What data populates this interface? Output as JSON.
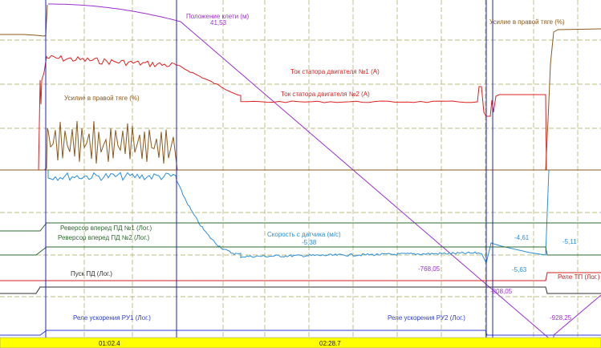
{
  "chart_data": {
    "type": "line",
    "labels": {
      "position": "Положение клети (м)",
      "position_value": "41,53",
      "force_right_top": "Усилие в правой тяге (%)",
      "stator1": "Ток статора двигателя №1 (А)",
      "stator2": "Ток статора двигателя №2 (А)",
      "force_left": "Усилие в правой тяге (%)",
      "speed": "Скорость с датчика (м/с)",
      "speed_val1": "-5,38",
      "speed_val2": "-4,61",
      "speed_val3": "-5,63",
      "speed_val4": "-5,11",
      "rev1": "Реверсор вперед ПД №1 (Лог.)",
      "rev2": "Реверсор вперед ПД №2 (Лог.)",
      "start": "Пуск ПД (Лог.)",
      "relay_tp": "Реле ТП (Лог.)",
      "pos_val1": "-768,05",
      "pos_val2": "-808,05",
      "pos_val3": "-928,25",
      "ru1": "Реле ускорения РУ1 (Лог.)",
      "ru2": "Реле ускорения РУ2 (Лог.)"
    },
    "time_labels": [
      "01:02.4",
      "02:28.7"
    ],
    "colors": {
      "grid": "#a8a860",
      "position": "#9b30d0",
      "stator": "#e02020",
      "force": "#8b5a1e",
      "speed": "#2a8fd8",
      "logic_green": "#2e6b2e",
      "logic_dark": "#303030",
      "relay": "#d02020",
      "relay_blue": "#3040d0",
      "cursor": "#2020c0",
      "timebar": "#ffff00"
    }
  }
}
